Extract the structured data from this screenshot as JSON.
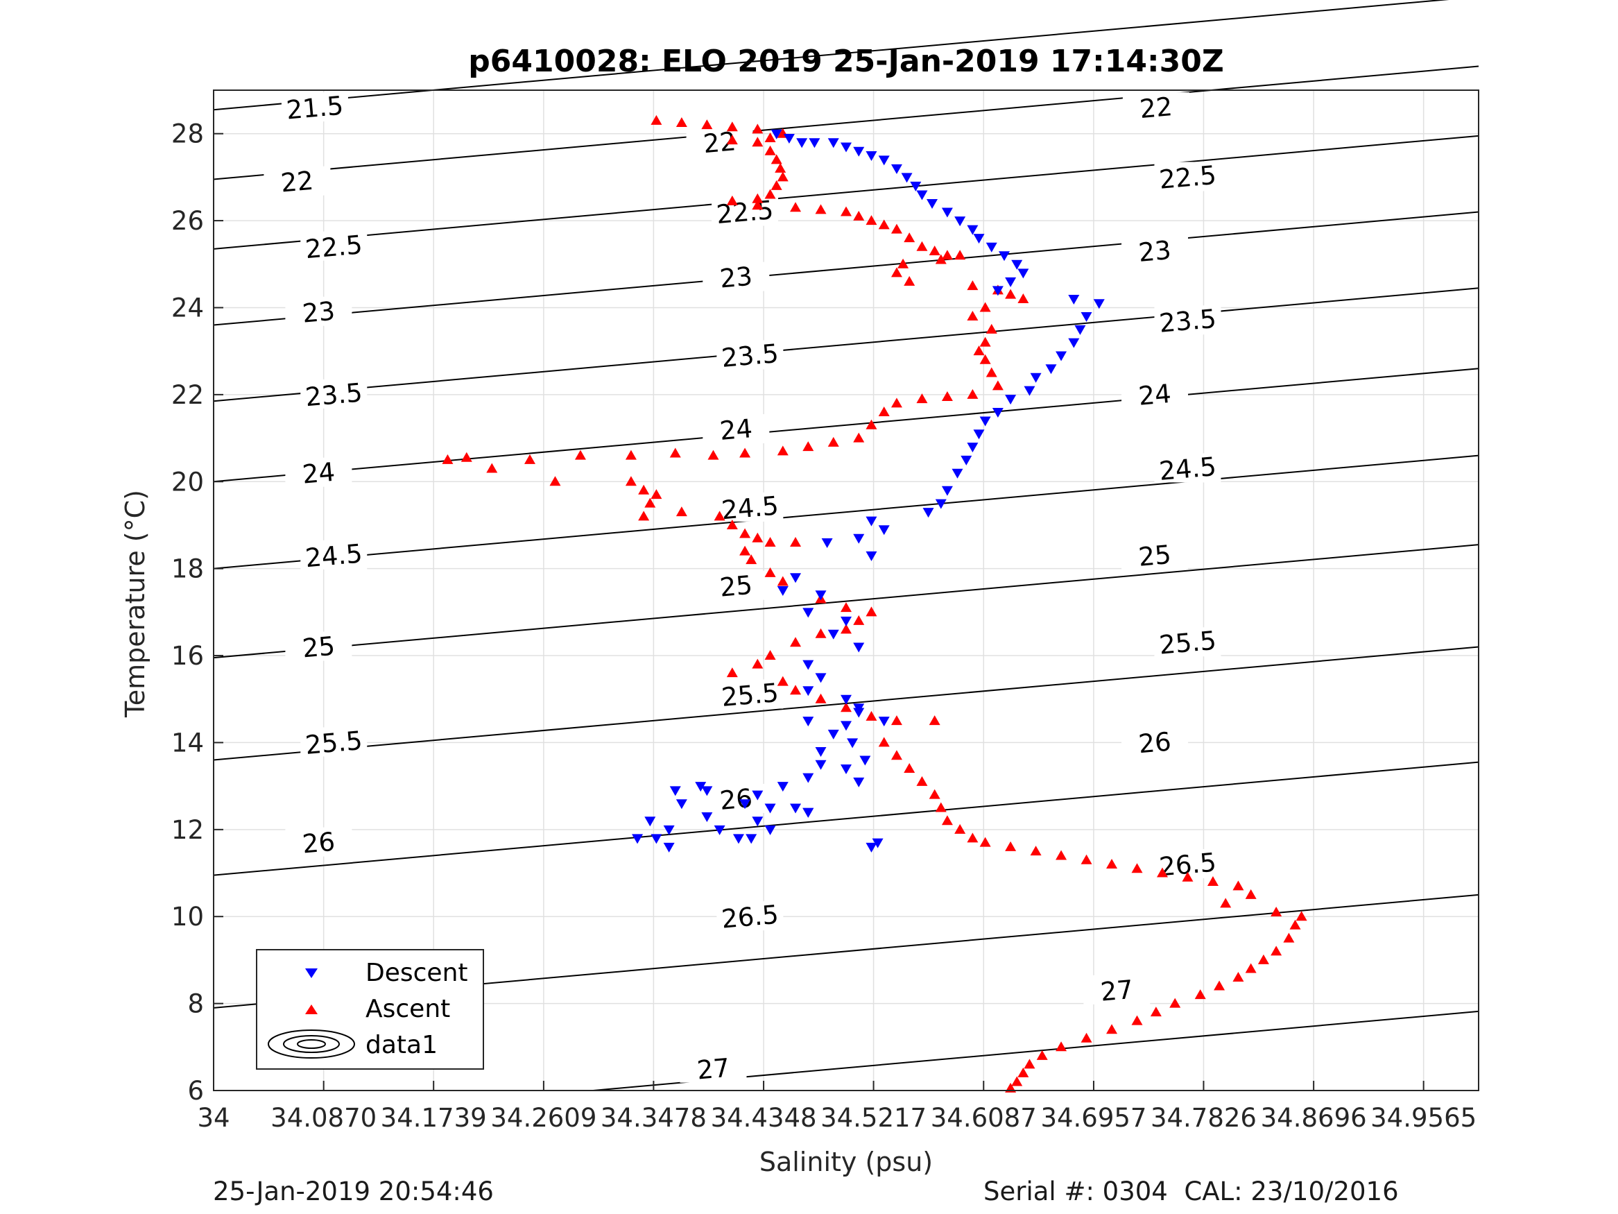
{
  "chart_data": {
    "type": "scatter",
    "title": "p6410028: ELO 2019 25-Jan-2019 17:14:30Z",
    "xlabel": "Salinity (psu)",
    "ylabel": "Temperature (°C)",
    "xlim": [
      34,
      35.0
    ],
    "ylim": [
      6,
      29
    ],
    "xticks": [
      34,
      34.087,
      34.1739,
      34.2609,
      34.3478,
      34.4348,
      34.5217,
      34.6087,
      34.6957,
      34.7826,
      34.8696,
      34.9565
    ],
    "xtick_labels": [
      "34",
      "34.0870",
      "34.1739",
      "34.2609",
      "34.3478",
      "34.4348",
      "34.5217",
      "34.6087",
      "34.6957",
      "34.7826",
      "34.8696",
      "34.9565"
    ],
    "yticks": [
      6,
      8,
      10,
      12,
      14,
      16,
      18,
      20,
      22,
      24,
      26,
      28
    ],
    "ytick_labels": [
      "6",
      "8",
      "10",
      "12",
      "14",
      "16",
      "18",
      "20",
      "22",
      "24",
      "26",
      "28"
    ],
    "grid": true,
    "legend": {
      "placement": "bottom-left",
      "entries": [
        "Descent",
        "Ascent",
        "data1"
      ]
    },
    "colors": {
      "descent": "#0000ff",
      "ascent": "#ff0000",
      "contour": "#000000",
      "grid": "#e0e0e0",
      "axis": "#262626"
    },
    "density_contours": {
      "levels": [
        21.5,
        22,
        22.5,
        23,
        23.5,
        24,
        24.5,
        25,
        25.5,
        26,
        26.5,
        27
      ],
      "labels": [
        {
          "text": "21.5",
          "s": 34.08,
          "t": 28.6
        },
        {
          "text": "22",
          "s": 34.066,
          "t": 26.9
        },
        {
          "text": "22",
          "s": 34.4,
          "t": 27.8
        },
        {
          "text": "22",
          "s": 34.745,
          "t": 28.6
        },
        {
          "text": "22.5",
          "s": 34.095,
          "t": 25.4
        },
        {
          "text": "22.5",
          "s": 34.42,
          "t": 26.2
        },
        {
          "text": "22.5",
          "s": 34.77,
          "t": 27.0
        },
        {
          "text": "23",
          "s": 34.083,
          "t": 23.9
        },
        {
          "text": "23",
          "s": 34.413,
          "t": 24.7
        },
        {
          "text": "23",
          "s": 34.744,
          "t": 25.3
        },
        {
          "text": "23.5",
          "s": 34.095,
          "t": 22.0
        },
        {
          "text": "23.5",
          "s": 34.424,
          "t": 22.9
        },
        {
          "text": "23.5",
          "s": 34.77,
          "t": 23.7
        },
        {
          "text": "24",
          "s": 34.083,
          "t": 20.2
        },
        {
          "text": "24",
          "s": 34.413,
          "t": 21.2
        },
        {
          "text": "24",
          "s": 34.744,
          "t": 22.0
        },
        {
          "text": "24.5",
          "s": 34.095,
          "t": 18.3
        },
        {
          "text": "24.5",
          "s": 34.424,
          "t": 19.4
        },
        {
          "text": "24.5",
          "s": 34.77,
          "t": 20.3
        },
        {
          "text": "25",
          "s": 34.083,
          "t": 16.2
        },
        {
          "text": "25",
          "s": 34.413,
          "t": 17.6
        },
        {
          "text": "25",
          "s": 34.744,
          "t": 18.3
        },
        {
          "text": "25.5",
          "s": 34.095,
          "t": 14.0
        },
        {
          "text": "25.5",
          "s": 34.424,
          "t": 15.1
        },
        {
          "text": "25.5",
          "s": 34.77,
          "t": 16.3
        },
        {
          "text": "26",
          "s": 34.083,
          "t": 11.7
        },
        {
          "text": "26",
          "s": 34.413,
          "t": 12.7
        },
        {
          "text": "26",
          "s": 34.744,
          "t": 14.0
        },
        {
          "text": "26.5",
          "s": 34.095,
          "t": 8.4
        },
        {
          "text": "26.5",
          "s": 34.424,
          "t": 10.0
        },
        {
          "text": "26.5",
          "s": 34.77,
          "t": 11.2
        },
        {
          "text": "27",
          "s": 34.395,
          "t": 6.5
        },
        {
          "text": "27",
          "s": 34.714,
          "t": 8.3
        }
      ]
    },
    "series": [
      {
        "name": "Descent",
        "marker": "triangle-down",
        "points": [
          [
            34.445,
            28.0
          ],
          [
            34.455,
            27.9
          ],
          [
            34.465,
            27.8
          ],
          [
            34.475,
            27.8
          ],
          [
            34.49,
            27.8
          ],
          [
            34.5,
            27.7
          ],
          [
            34.51,
            27.6
          ],
          [
            34.52,
            27.5
          ],
          [
            34.53,
            27.4
          ],
          [
            34.54,
            27.2
          ],
          [
            34.548,
            27.0
          ],
          [
            34.555,
            26.8
          ],
          [
            34.56,
            26.6
          ],
          [
            34.568,
            26.4
          ],
          [
            34.58,
            26.2
          ],
          [
            34.59,
            26.0
          ],
          [
            34.6,
            25.8
          ],
          [
            34.605,
            25.6
          ],
          [
            34.615,
            25.4
          ],
          [
            34.625,
            25.2
          ],
          [
            34.635,
            25.0
          ],
          [
            34.64,
            24.8
          ],
          [
            34.63,
            24.6
          ],
          [
            34.62,
            24.4
          ],
          [
            34.68,
            24.2
          ],
          [
            34.7,
            24.1
          ],
          [
            34.69,
            23.8
          ],
          [
            34.685,
            23.5
          ],
          [
            34.68,
            23.2
          ],
          [
            34.67,
            22.9
          ],
          [
            34.662,
            22.6
          ],
          [
            34.65,
            22.4
          ],
          [
            34.645,
            22.1
          ],
          [
            34.63,
            21.9
          ],
          [
            34.62,
            21.6
          ],
          [
            34.61,
            21.4
          ],
          [
            34.605,
            21.1
          ],
          [
            34.6,
            20.8
          ],
          [
            34.595,
            20.5
          ],
          [
            34.588,
            20.2
          ],
          [
            34.58,
            19.8
          ],
          [
            34.575,
            19.5
          ],
          [
            34.565,
            19.3
          ],
          [
            34.52,
            19.1
          ],
          [
            34.53,
            18.9
          ],
          [
            34.51,
            18.7
          ],
          [
            34.485,
            18.6
          ],
          [
            34.52,
            18.3
          ],
          [
            34.46,
            17.8
          ],
          [
            34.45,
            17.5
          ],
          [
            34.48,
            17.4
          ],
          [
            34.47,
            17.0
          ],
          [
            34.5,
            16.8
          ],
          [
            34.49,
            16.5
          ],
          [
            34.51,
            16.2
          ],
          [
            34.47,
            15.8
          ],
          [
            34.48,
            15.5
          ],
          [
            34.47,
            15.2
          ],
          [
            34.5,
            15.0
          ],
          [
            34.51,
            14.8
          ],
          [
            34.47,
            14.5
          ],
          [
            34.5,
            14.4
          ],
          [
            34.49,
            14.2
          ],
          [
            34.505,
            14.0
          ],
          [
            34.48,
            13.8
          ],
          [
            34.515,
            13.6
          ],
          [
            34.5,
            13.4
          ],
          [
            34.51,
            13.1
          ],
          [
            34.45,
            13.0
          ],
          [
            34.47,
            13.2
          ],
          [
            34.43,
            12.8
          ],
          [
            34.44,
            12.5
          ],
          [
            34.46,
            12.5
          ],
          [
            34.47,
            12.4
          ],
          [
            34.42,
            12.6
          ],
          [
            34.43,
            12.2
          ],
          [
            34.44,
            12.0
          ],
          [
            34.425,
            11.8
          ],
          [
            34.4,
            12.0
          ],
          [
            34.39,
            12.3
          ],
          [
            34.37,
            12.6
          ],
          [
            34.365,
            12.9
          ],
          [
            34.385,
            13.0
          ],
          [
            34.39,
            12.9
          ],
          [
            34.36,
            12.0
          ],
          [
            34.35,
            11.8
          ],
          [
            34.345,
            12.2
          ],
          [
            34.36,
            11.6
          ],
          [
            34.335,
            11.8
          ],
          [
            34.415,
            11.8
          ],
          [
            34.52,
            11.6
          ],
          [
            34.525,
            11.7
          ],
          [
            34.47,
            12.4
          ],
          [
            34.48,
            13.5
          ],
          [
            34.51,
            14.7
          ],
          [
            34.53,
            14.5
          ]
        ]
      },
      {
        "name": "Ascent",
        "marker": "triangle-up",
        "points": [
          [
            34.35,
            28.3
          ],
          [
            34.37,
            28.25
          ],
          [
            34.39,
            28.2
          ],
          [
            34.41,
            28.15
          ],
          [
            34.43,
            28.1
          ],
          [
            34.45,
            28.0
          ],
          [
            34.44,
            27.9
          ],
          [
            34.41,
            27.85
          ],
          [
            34.43,
            27.8
          ],
          [
            34.44,
            27.6
          ],
          [
            34.445,
            27.4
          ],
          [
            34.448,
            27.2
          ],
          [
            34.45,
            27.0
          ],
          [
            34.445,
            26.8
          ],
          [
            34.44,
            26.6
          ],
          [
            34.43,
            26.5
          ],
          [
            34.41,
            26.45
          ],
          [
            34.43,
            26.35
          ],
          [
            34.46,
            26.3
          ],
          [
            34.48,
            26.25
          ],
          [
            34.5,
            26.2
          ],
          [
            34.51,
            26.1
          ],
          [
            34.52,
            26.0
          ],
          [
            34.53,
            25.9
          ],
          [
            34.54,
            25.8
          ],
          [
            34.55,
            25.6
          ],
          [
            34.56,
            25.4
          ],
          [
            34.57,
            25.3
          ],
          [
            34.58,
            25.2
          ],
          [
            34.59,
            25.2
          ],
          [
            34.575,
            25.1
          ],
          [
            34.545,
            25.0
          ],
          [
            34.54,
            24.8
          ],
          [
            34.55,
            24.6
          ],
          [
            34.6,
            24.5
          ],
          [
            34.62,
            24.4
          ],
          [
            34.63,
            24.3
          ],
          [
            34.64,
            24.2
          ],
          [
            34.61,
            24.0
          ],
          [
            34.6,
            23.8
          ],
          [
            34.615,
            23.5
          ],
          [
            34.61,
            23.2
          ],
          [
            34.605,
            23.0
          ],
          [
            34.61,
            22.8
          ],
          [
            34.615,
            22.5
          ],
          [
            34.62,
            22.2
          ],
          [
            34.6,
            22.0
          ],
          [
            34.58,
            21.95
          ],
          [
            34.56,
            21.9
          ],
          [
            34.54,
            21.8
          ],
          [
            34.53,
            21.6
          ],
          [
            34.52,
            21.3
          ],
          [
            34.51,
            21.0
          ],
          [
            34.49,
            20.9
          ],
          [
            34.47,
            20.8
          ],
          [
            34.45,
            20.7
          ],
          [
            34.42,
            20.65
          ],
          [
            34.395,
            20.6
          ],
          [
            34.365,
            20.65
          ],
          [
            34.33,
            20.6
          ],
          [
            34.29,
            20.6
          ],
          [
            34.25,
            20.5
          ],
          [
            34.2,
            20.55
          ],
          [
            34.185,
            20.5
          ],
          [
            34.22,
            20.3
          ],
          [
            34.27,
            20.0
          ],
          [
            34.33,
            20.0
          ],
          [
            34.34,
            19.8
          ],
          [
            34.35,
            19.7
          ],
          [
            34.345,
            19.5
          ],
          [
            34.34,
            19.2
          ],
          [
            34.37,
            19.3
          ],
          [
            34.4,
            19.2
          ],
          [
            34.41,
            19.0
          ],
          [
            34.42,
            18.8
          ],
          [
            34.43,
            18.7
          ],
          [
            34.44,
            18.6
          ],
          [
            34.46,
            18.6
          ],
          [
            34.42,
            18.4
          ],
          [
            34.425,
            18.2
          ],
          [
            34.44,
            17.9
          ],
          [
            34.45,
            17.7
          ],
          [
            34.48,
            17.3
          ],
          [
            34.5,
            17.1
          ],
          [
            34.52,
            17.0
          ],
          [
            34.51,
            16.8
          ],
          [
            34.5,
            16.6
          ],
          [
            34.48,
            16.5
          ],
          [
            34.46,
            16.3
          ],
          [
            34.44,
            16.0
          ],
          [
            34.43,
            15.8
          ],
          [
            34.41,
            15.6
          ],
          [
            34.45,
            15.4
          ],
          [
            34.46,
            15.2
          ],
          [
            34.48,
            15.0
          ],
          [
            34.5,
            14.8
          ],
          [
            34.52,
            14.6
          ],
          [
            34.54,
            14.5
          ],
          [
            34.57,
            14.5
          ],
          [
            34.53,
            14.0
          ],
          [
            34.54,
            13.7
          ],
          [
            34.55,
            13.4
          ],
          [
            34.56,
            13.1
          ],
          [
            34.57,
            12.8
          ],
          [
            34.575,
            12.5
          ],
          [
            34.58,
            12.2
          ],
          [
            34.59,
            12.0
          ],
          [
            34.6,
            11.8
          ],
          [
            34.61,
            11.7
          ],
          [
            34.63,
            11.6
          ],
          [
            34.65,
            11.5
          ],
          [
            34.67,
            11.4
          ],
          [
            34.69,
            11.3
          ],
          [
            34.71,
            11.2
          ],
          [
            34.73,
            11.1
          ],
          [
            34.75,
            11.0
          ],
          [
            34.77,
            10.9
          ],
          [
            34.79,
            10.8
          ],
          [
            34.81,
            10.7
          ],
          [
            34.82,
            10.5
          ],
          [
            34.8,
            10.3
          ],
          [
            34.84,
            10.1
          ],
          [
            34.86,
            10.0
          ],
          [
            34.855,
            9.8
          ],
          [
            34.85,
            9.5
          ],
          [
            34.84,
            9.2
          ],
          [
            34.83,
            9.0
          ],
          [
            34.82,
            8.8
          ],
          [
            34.81,
            8.6
          ],
          [
            34.795,
            8.4
          ],
          [
            34.78,
            8.2
          ],
          [
            34.76,
            8.0
          ],
          [
            34.745,
            7.8
          ],
          [
            34.73,
            7.6
          ],
          [
            34.71,
            7.4
          ],
          [
            34.69,
            7.2
          ],
          [
            34.67,
            7.0
          ],
          [
            34.655,
            6.8
          ],
          [
            34.645,
            6.6
          ],
          [
            34.64,
            6.4
          ],
          [
            34.635,
            6.2
          ],
          [
            34.63,
            6.05
          ]
        ]
      }
    ]
  },
  "footer": {
    "timestamp": "25-Jan-2019 20:54:46",
    "serial": "Serial #: 0304  CAL: 23/10/2016"
  }
}
